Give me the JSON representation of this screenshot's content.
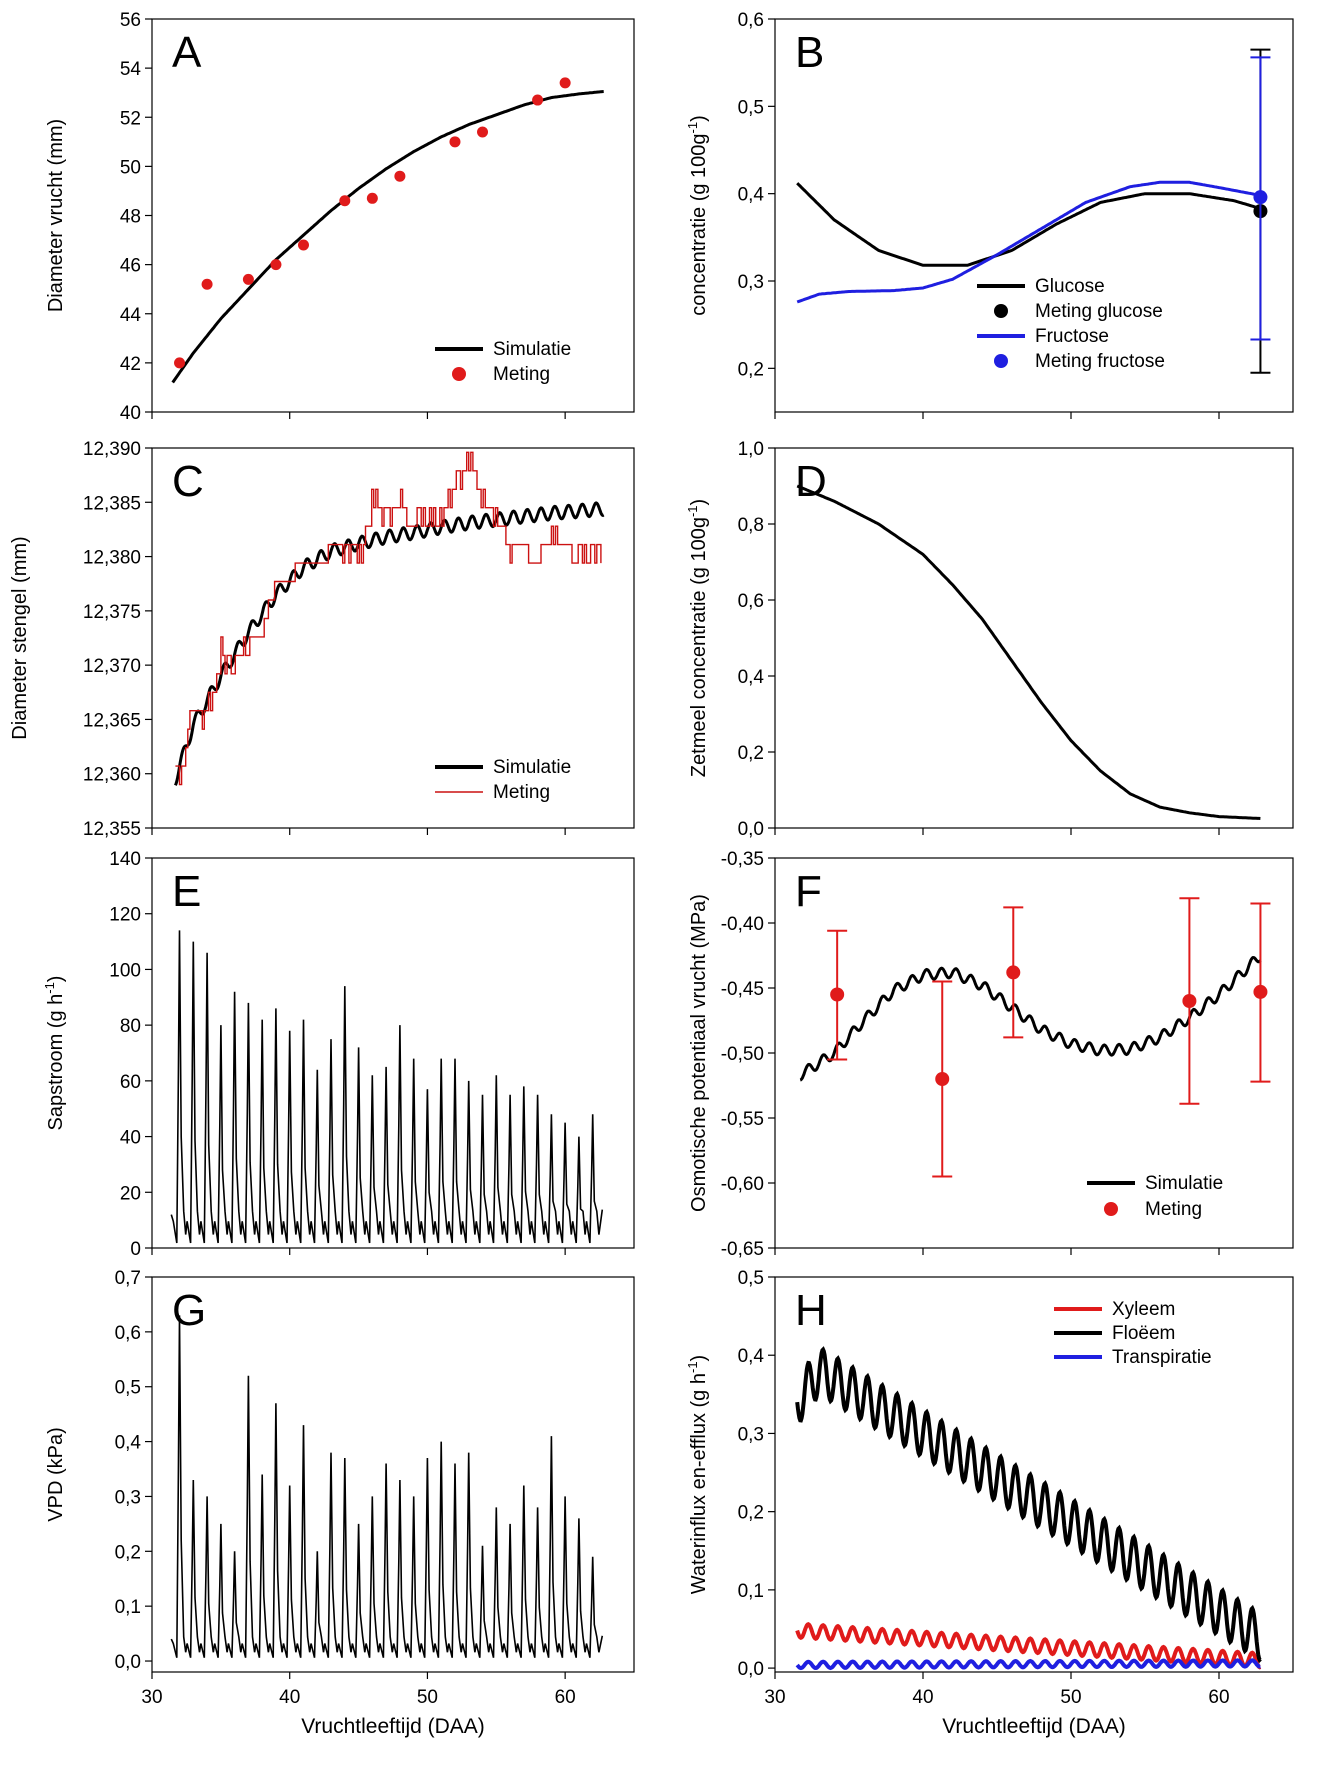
{
  "figure": {
    "xlabel": "Vruchtleeftijd (DAA)"
  },
  "chart_data": [
    {
      "panel": "A",
      "type": "line",
      "ylabel": "Diameter vrucht (mm)",
      "xlim": [
        30,
        65
      ],
      "ylim": [
        40,
        56
      ],
      "xticks": [
        30,
        40,
        50,
        60
      ],
      "yticks": [
        40,
        42,
        44,
        46,
        48,
        50,
        52,
        54,
        56
      ],
      "xtick_labels": [
        "",
        "",
        "",
        ""
      ],
      "ytick_labels": [
        "40",
        "42",
        "44",
        "46",
        "48",
        "50",
        "52",
        "54",
        "56"
      ],
      "legend_position": "bottom-right",
      "series": [
        {
          "name": "Simulatie",
          "kind": "line",
          "color": "#000000",
          "x": [
            31.5,
            33,
            35,
            37,
            39,
            41,
            43,
            45,
            47,
            49,
            51,
            53,
            55,
            57,
            59,
            61,
            62.8
          ],
          "y": [
            41.2,
            42.4,
            43.8,
            45.0,
            46.2,
            47.2,
            48.2,
            49.1,
            49.9,
            50.6,
            51.2,
            51.7,
            52.1,
            52.5,
            52.8,
            52.95,
            53.05
          ]
        },
        {
          "name": "Meting",
          "kind": "scatter",
          "color": "#e01b1b",
          "x": [
            32,
            34,
            37,
            39,
            41,
            44,
            46,
            48,
            52,
            54,
            58,
            60
          ],
          "y": [
            42.0,
            45.2,
            45.4,
            46.0,
            46.8,
            48.6,
            48.7,
            49.6,
            51.0,
            51.4,
            52.7,
            53.4
          ]
        }
      ]
    },
    {
      "panel": "B",
      "type": "line",
      "ylabel": "concentratie (g 100g",
      "ylabel_sup": "-1",
      "ylabel_tail": ")",
      "xlim": [
        30,
        65
      ],
      "ylim": [
        0.15,
        0.6
      ],
      "xticks": [
        30,
        40,
        50,
        60
      ],
      "yticks": [
        0.2,
        0.3,
        0.4,
        0.5,
        0.6
      ],
      "xtick_labels": [
        "",
        "",
        "",
        ""
      ],
      "ytick_labels": [
        "0,2",
        "0,3",
        "0,4",
        "0,5",
        "0,6"
      ],
      "legend_position": "bottom-right",
      "series": [
        {
          "name": "Glucose",
          "kind": "line",
          "color": "#000000",
          "x": [
            31.5,
            34,
            37,
            40,
            43,
            46,
            49,
            52,
            55,
            58,
            61,
            62.8
          ],
          "y": [
            0.412,
            0.37,
            0.335,
            0.318,
            0.318,
            0.335,
            0.365,
            0.39,
            0.4,
            0.4,
            0.392,
            0.383
          ]
        },
        {
          "name": "Meting glucose",
          "kind": "errorbar",
          "color": "#000000",
          "x": [
            62.8
          ],
          "y": [
            0.38
          ],
          "yerr_low": [
            0.195
          ],
          "yerr_high": [
            0.565
          ]
        },
        {
          "name": "Fructose",
          "kind": "line",
          "color": "#1f1fe0",
          "x": [
            31.5,
            33,
            35,
            38,
            40,
            42,
            45,
            48,
            51,
            54,
            56,
            58,
            60,
            62.8
          ],
          "y": [
            0.276,
            0.285,
            0.288,
            0.289,
            0.292,
            0.302,
            0.33,
            0.36,
            0.39,
            0.408,
            0.413,
            0.413,
            0.407,
            0.398
          ]
        },
        {
          "name": "Meting fructose",
          "kind": "errorbar",
          "color": "#1f1fe0",
          "x": [
            62.8
          ],
          "y": [
            0.396
          ],
          "yerr_low": [
            0.233
          ],
          "yerr_high": [
            0.556
          ]
        }
      ]
    },
    {
      "panel": "C",
      "type": "line",
      "ylabel": "Diameter stengel (mm)",
      "xlim": [
        30,
        65
      ],
      "ylim": [
        12.355,
        12.39
      ],
      "xticks": [
        30,
        40,
        50,
        60
      ],
      "yticks": [
        12.355,
        12.36,
        12.365,
        12.37,
        12.375,
        12.38,
        12.385,
        12.39
      ],
      "xtick_labels": [
        "",
        "",
        "",
        ""
      ],
      "ytick_labels": [
        "12,355",
        "12,360",
        "12,365",
        "12,370",
        "12,375",
        "12,380",
        "12,385",
        "12,390"
      ],
      "legend_position": "bottom-right",
      "series": [
        {
          "name": "Simulatie",
          "kind": "line",
          "color": "#000000",
          "x": [
            31.7,
            33,
            35,
            37,
            39,
            41,
            43,
            45,
            47,
            49,
            51,
            53,
            55,
            57,
            59,
            61,
            62.8
          ],
          "y": [
            12.3595,
            12.3645,
            12.369,
            12.373,
            12.3765,
            12.379,
            12.3805,
            12.3812,
            12.3818,
            12.3822,
            12.3827,
            12.3831,
            12.3834,
            12.3837,
            12.384,
            12.3842,
            12.3844
          ],
          "oscillation_amplitude": 0.0006,
          "oscillations_per_day": 1
        },
        {
          "name": "Meting",
          "kind": "step",
          "color": "#cc1111",
          "x": [
            31.7,
            32,
            32.8,
            33.5,
            34.5,
            35,
            36,
            37,
            38,
            39,
            40,
            41,
            42,
            43,
            44,
            45,
            46,
            47,
            48,
            49,
            50,
            51,
            52,
            53,
            54,
            55,
            56,
            57,
            58,
            59,
            60,
            61,
            62
          ],
          "y": [
            12.361,
            12.359,
            12.366,
            12.365,
            12.368,
            12.371,
            12.37,
            12.372,
            12.373,
            12.378,
            12.378,
            12.38,
            12.379,
            12.38,
            12.381,
            12.38,
            12.385,
            12.384,
            12.385,
            12.383,
            12.384,
            12.384,
            12.387,
            12.389,
            12.385,
            12.384,
            12.38,
            12.381,
            12.379,
            12.382,
            12.381,
            12.38,
            12.381
          ],
          "noise_amplitude": 0.0018
        }
      ]
    },
    {
      "panel": "D",
      "type": "line",
      "ylabel": "Zetmeel concentratie (g 100g",
      "ylabel_sup": "-1",
      "ylabel_tail": ")",
      "xlim": [
        30,
        65
      ],
      "ylim": [
        0,
        1.0
      ],
      "xticks": [
        30,
        40,
        50,
        60
      ],
      "yticks": [
        0,
        0.2,
        0.4,
        0.6,
        0.8,
        1.0
      ],
      "xtick_labels": [
        "",
        "",
        "",
        ""
      ],
      "ytick_labels": [
        "0,0",
        "0,2",
        "0,4",
        "0,6",
        "0,8",
        "1,0"
      ],
      "series": [
        {
          "name": "",
          "kind": "line",
          "color": "#000000",
          "x": [
            31.5,
            34,
            37,
            40,
            42,
            44,
            46,
            48,
            50,
            52,
            54,
            56,
            58,
            60,
            62.8
          ],
          "y": [
            0.9,
            0.86,
            0.8,
            0.72,
            0.64,
            0.55,
            0.44,
            0.33,
            0.23,
            0.15,
            0.09,
            0.055,
            0.04,
            0.03,
            0.025
          ]
        }
      ]
    },
    {
      "panel": "E",
      "type": "line",
      "ylabel": "Sapstroom (g h",
      "ylabel_sup": "-1",
      "ylabel_tail": ")",
      "xlim": [
        30,
        65
      ],
      "ylim": [
        0,
        140
      ],
      "xticks": [
        30,
        40,
        50,
        60
      ],
      "yticks": [
        0,
        20,
        40,
        60,
        80,
        100,
        120,
        140
      ],
      "xtick_labels": [
        "",
        "",
        "",
        ""
      ],
      "ytick_labels": [
        "0",
        "20",
        "40",
        "60",
        "80",
        "100",
        "120",
        "140"
      ],
      "series": [
        {
          "name": "",
          "kind": "daily_peaks",
          "color": "#000000",
          "peak_days": [
            32,
            33,
            34,
            35,
            36,
            37,
            38,
            39,
            40,
            41,
            42,
            43,
            44,
            45,
            46,
            47,
            48,
            49,
            50,
            51,
            52,
            53,
            54,
            55,
            56,
            57,
            58,
            59,
            60,
            61,
            62
          ],
          "peak_values": [
            114,
            110,
            106,
            80,
            92,
            88,
            82,
            86,
            78,
            82,
            64,
            75,
            94,
            72,
            62,
            65,
            80,
            68,
            57,
            68,
            68,
            60,
            55,
            62,
            55,
            58,
            55,
            48,
            45,
            40,
            48
          ],
          "base_value": 6
        }
      ]
    },
    {
      "panel": "F",
      "type": "line",
      "ylabel": "Osmotische potentiaal vrucht (MPa)",
      "xlim": [
        30,
        65
      ],
      "ylim": [
        -0.65,
        -0.35
      ],
      "xticks": [
        30,
        40,
        50,
        60
      ],
      "yticks": [
        -0.65,
        -0.6,
        -0.55,
        -0.5,
        -0.45,
        -0.4,
        -0.35
      ],
      "xtick_labels": [
        "",
        "",
        "",
        ""
      ],
      "ytick_labels": [
        "-0,65",
        "-0,60",
        "-0,55",
        "-0,50",
        "-0,45",
        "-0,40",
        "-0,35"
      ],
      "legend_position": "bottom-right",
      "series": [
        {
          "name": "Simulatie",
          "kind": "line",
          "color": "#000000",
          "x": [
            31.7,
            34,
            36,
            38,
            40,
            42,
            44,
            46,
            48,
            50,
            52,
            54,
            56,
            58,
            60,
            62.8
          ],
          "y": [
            -0.517,
            -0.5,
            -0.475,
            -0.452,
            -0.44,
            -0.438,
            -0.448,
            -0.465,
            -0.482,
            -0.493,
            -0.498,
            -0.497,
            -0.488,
            -0.473,
            -0.455,
            -0.425
          ],
          "oscillation_amplitude": 0.004,
          "oscillations_per_day": 1
        },
        {
          "name": "Meting",
          "kind": "errorbar",
          "color": "#e01b1b",
          "x": [
            34.2,
            41.3,
            46.1,
            58.0,
            62.8
          ],
          "y": [
            -0.455,
            -0.52,
            -0.438,
            -0.46,
            -0.453
          ],
          "yerr_low": [
            -0.505,
            -0.595,
            -0.488,
            -0.539,
            -0.522
          ],
          "yerr_high": [
            -0.406,
            -0.445,
            -0.388,
            -0.381,
            -0.385
          ]
        }
      ]
    },
    {
      "panel": "G",
      "type": "line",
      "ylabel": "VPD (kPa)",
      "xlim": [
        30,
        65
      ],
      "ylim": [
        -0.02,
        0.7
      ],
      "xticks": [
        30,
        40,
        50,
        60
      ],
      "yticks": [
        0,
        0.1,
        0.2,
        0.3,
        0.4,
        0.5,
        0.6,
        0.7
      ],
      "xtick_labels": [
        "30",
        "40",
        "50",
        "60"
      ],
      "ytick_labels": [
        "0,0",
        "0,1",
        "0,2",
        "0,3",
        "0,4",
        "0,5",
        "0,6",
        "0,7"
      ],
      "series": [
        {
          "name": "",
          "kind": "daily_peaks",
          "color": "#000000",
          "peak_days": [
            32,
            33,
            34,
            35,
            36,
            37,
            38,
            39,
            40,
            41,
            42,
            43,
            44,
            45,
            46,
            47,
            48,
            49,
            50,
            51,
            52,
            53,
            54,
            55,
            56,
            57,
            58,
            59,
            60,
            61,
            62
          ],
          "peak_values": [
            0.63,
            0.33,
            0.3,
            0.25,
            0.2,
            0.52,
            0.34,
            0.47,
            0.32,
            0.43,
            0.2,
            0.38,
            0.37,
            0.25,
            0.3,
            0.36,
            0.33,
            0.3,
            0.37,
            0.4,
            0.36,
            0.38,
            0.21,
            0.28,
            0.25,
            0.32,
            0.28,
            0.41,
            0.3,
            0.26,
            0.19
          ],
          "base_value": 0.02
        }
      ]
    },
    {
      "panel": "H",
      "type": "line",
      "ylabel": "Waterinflux en-efflux (g h",
      "ylabel_sup": "-1",
      "ylabel_tail": ")",
      "xlim": [
        30,
        65
      ],
      "ylim": [
        -0.005,
        0.5
      ],
      "xticks": [
        30,
        40,
        50,
        60
      ],
      "yticks": [
        0,
        0.1,
        0.2,
        0.3,
        0.4,
        0.5
      ],
      "xtick_labels": [
        "30",
        "40",
        "50",
        "60"
      ],
      "ytick_labels": [
        "0,0",
        "0,1",
        "0,2",
        "0,3",
        "0,4",
        "0,5"
      ],
      "legend_position": "top-right",
      "series": [
        {
          "name": "Xyleem",
          "kind": "line",
          "color": "#e01b1b",
          "x": [
            31.5,
            62.8
          ],
          "y": [
            0.048,
            0.01
          ],
          "oscillation_amplitude": 0.009,
          "oscillations_per_day": 1
        },
        {
          "name": "Floëem",
          "kind": "line",
          "color": "#000000",
          "x": [
            31.5,
            33,
            62.8
          ],
          "y": [
            0.34,
            0.38,
            0.04
          ],
          "oscillation_amplitude": 0.03,
          "oscillations_per_day": 1
        },
        {
          "name": "Transpiratie",
          "kind": "line",
          "color": "#1f1fe0",
          "x": [
            31.5,
            62.8
          ],
          "y": [
            0.004,
            0.006
          ],
          "oscillation_amplitude": 0.004,
          "oscillations_per_day": 1
        }
      ]
    }
  ]
}
